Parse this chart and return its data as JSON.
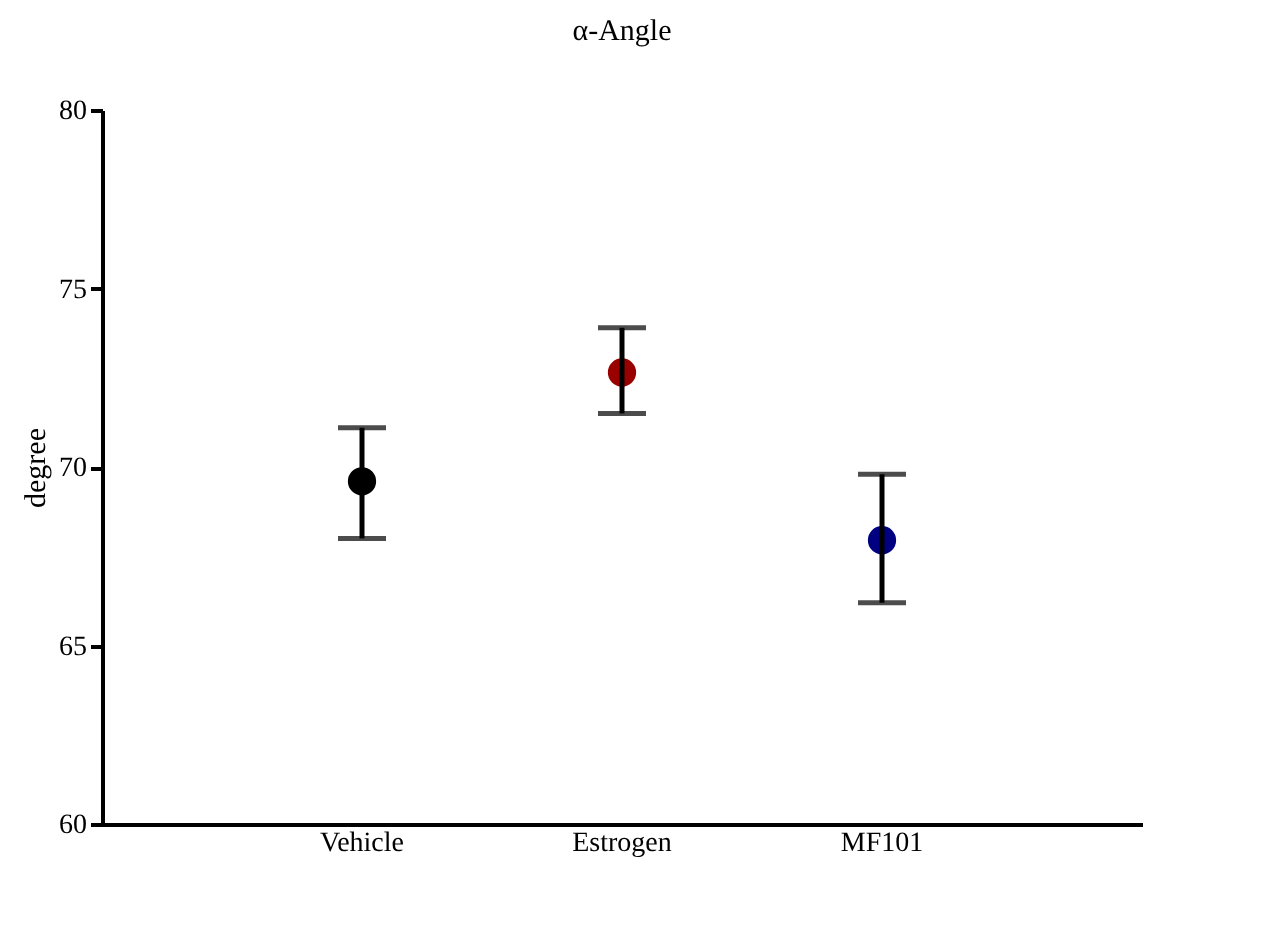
{
  "chart_data": {
    "type": "scatter",
    "title": "α-Angle",
    "ylabel": "degree",
    "categories": [
      "Vehicle",
      "Estrogen",
      "MF101"
    ],
    "values": [
      69.6,
      72.65,
      67.95
    ],
    "colors": [
      "#000000",
      "#990000",
      "#000080"
    ],
    "errors": [
      [
        68.0,
        71.1
      ],
      [
        71.5,
        73.9
      ],
      [
        66.2,
        69.8
      ]
    ],
    "ylim": [
      60,
      80
    ],
    "yticks": [
      60,
      65,
      70,
      75,
      80
    ],
    "grid": false,
    "legend": false,
    "marker": "circle"
  }
}
